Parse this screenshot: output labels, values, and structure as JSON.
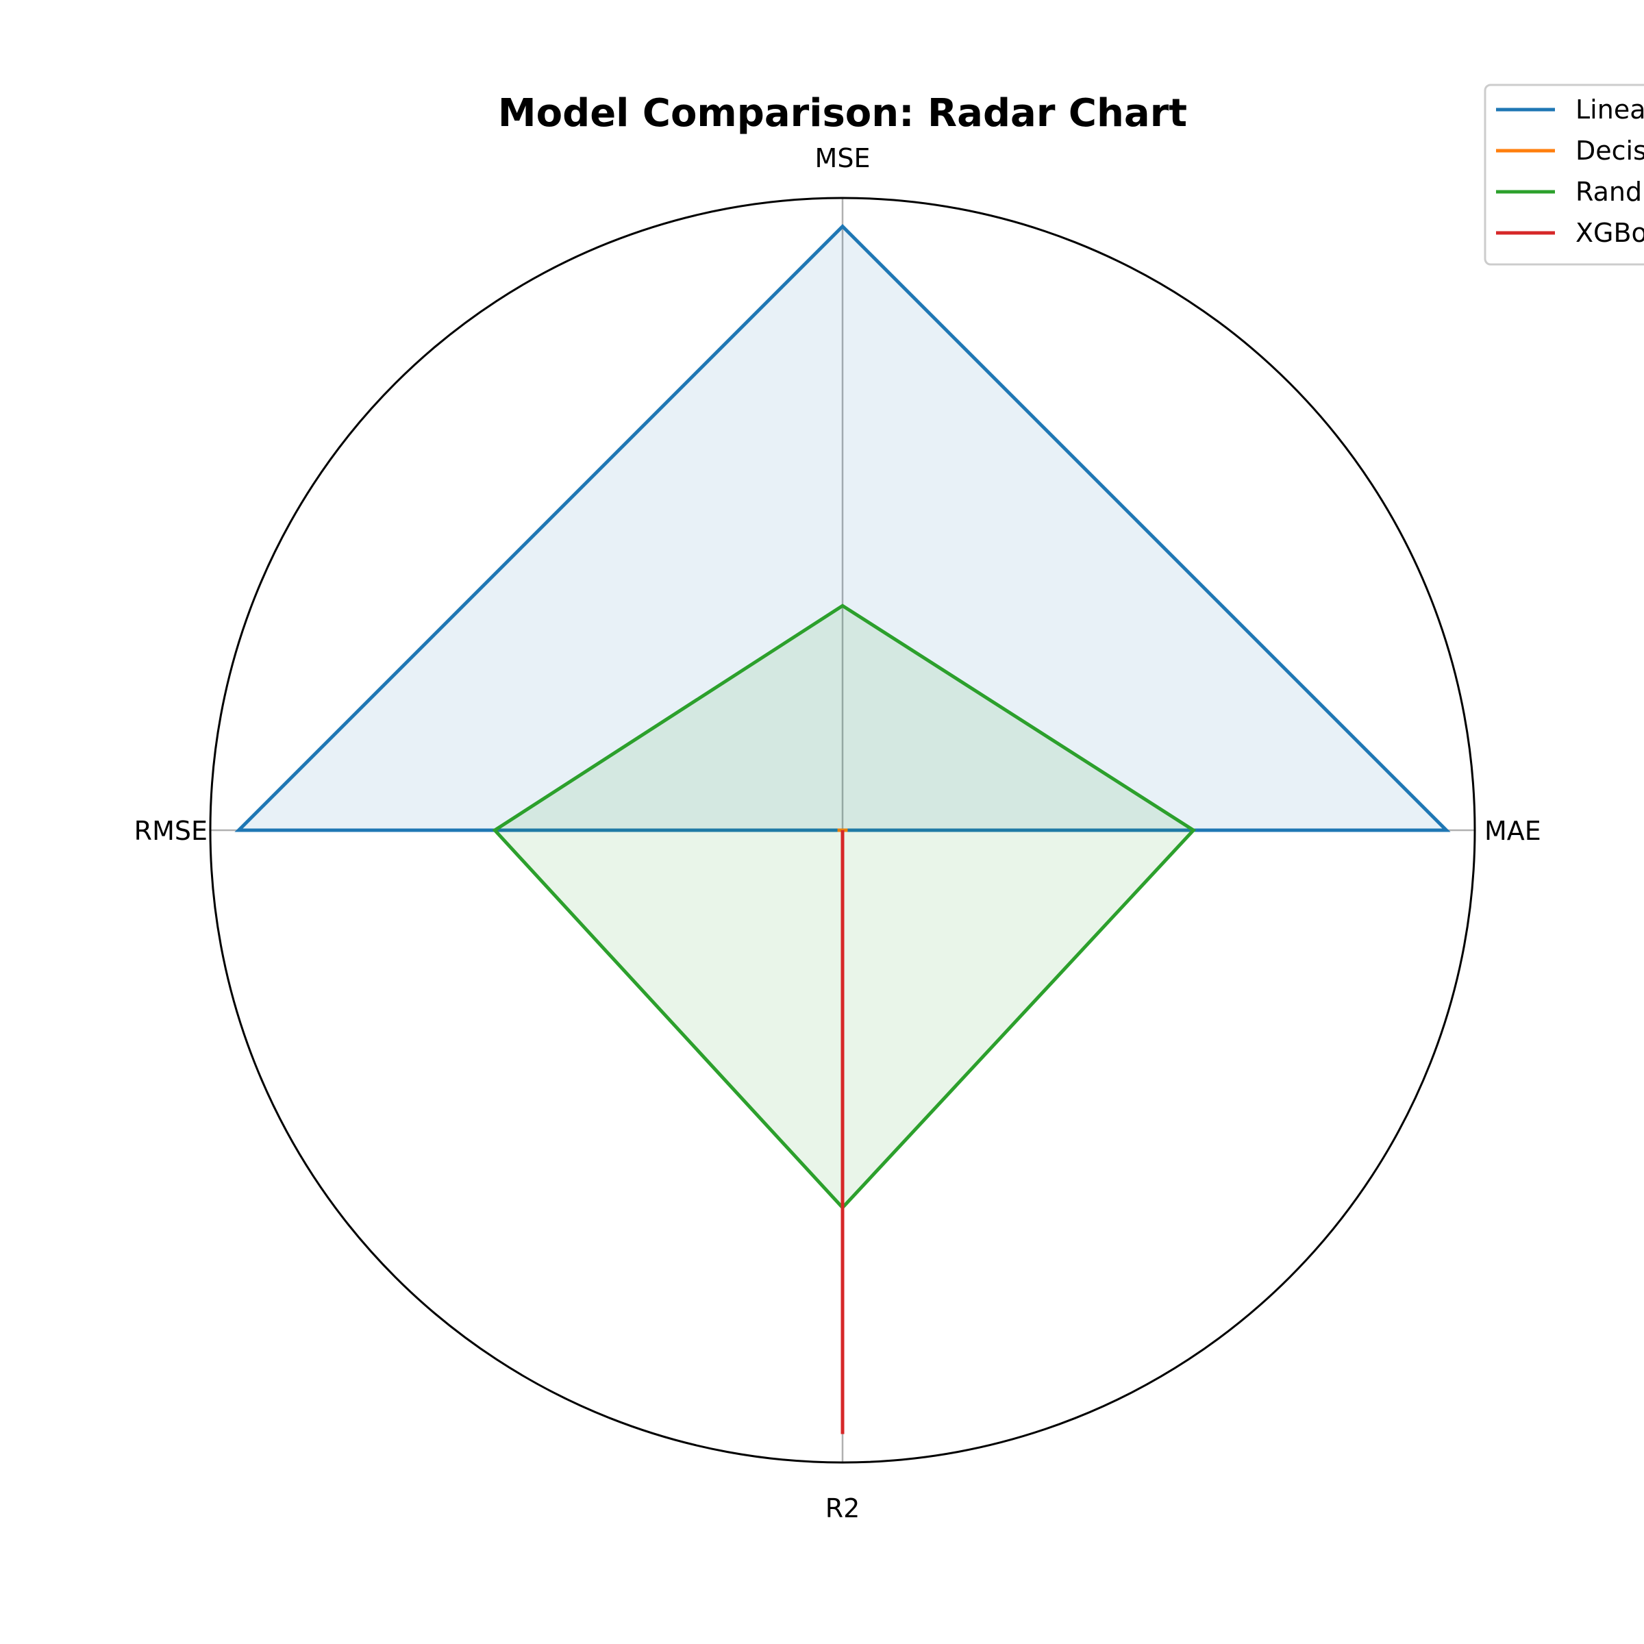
{
  "chart_data": {
    "type": "radar",
    "title": "Model Comparison: Radar Chart",
    "categories": [
      "MSE",
      "MAE",
      "R2",
      "RMSE"
    ],
    "rlim": [
      0,
      1
    ],
    "grid": false,
    "legend_placement": "top-right",
    "series": [
      {
        "name": "Linea",
        "color": "#1f77b4",
        "values": [
          0.955,
          0.955,
          0.0,
          0.955
        ],
        "filled": true
      },
      {
        "name": "Decis",
        "color": "#ff7f0e",
        "values": [
          0.0,
          0.008,
          0.0,
          0.008
        ],
        "filled": false
      },
      {
        "name": "Rand",
        "color": "#2ca02c",
        "values": [
          0.355,
          0.555,
          0.597,
          0.55
        ],
        "filled": true
      },
      {
        "name": "XGBo",
        "color": "#d62728",
        "values": [
          0.0,
          0.0,
          0.955,
          0.0
        ],
        "filled": false
      }
    ]
  }
}
